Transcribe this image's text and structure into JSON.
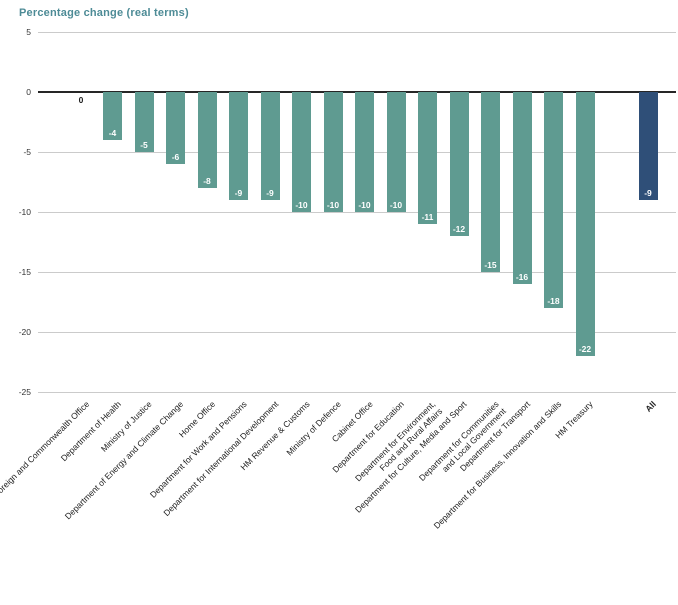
{
  "title": "Percentage change (real terms)",
  "colors": {
    "bar": "#5f9b91",
    "highlight_bar": "#2f4f78",
    "title_text": "#4d8b96",
    "grid": "#cbcbcb",
    "zero_line": "#262626",
    "bar_value_text": "#ffffff",
    "zero_bar_value_text": "#1a1a1a",
    "axis_text": "#333333",
    "category_text": "#222222",
    "background": "#ffffff"
  },
  "chart_data": {
    "type": "bar",
    "title": "Percentage change (real terms)",
    "categories": [
      "Foreign and Commonwealth Office",
      "Department of Health",
      "Ministry of Justice",
      "Department of Energy and Climate Change",
      "Home Office",
      "Department for Work and Pensions",
      "Department for International Development",
      "HM Revenue & Customs",
      "Ministry of Defence",
      "Cabinet Office",
      "Department for Education",
      "Department for Environment,\nFood and Rural Affairs",
      "Department for Culture, Media and Sport",
      "Department for Communities\nand Local Government",
      "Department for Transport",
      "Department for Business, Innovation and Skills",
      "HM Treasury",
      "All"
    ],
    "values": [
      0,
      -4,
      -5,
      -6,
      -8,
      -9,
      -9,
      -10,
      -10,
      -10,
      -10,
      -11,
      -12,
      -15,
      -16,
      -18,
      -22,
      -9
    ],
    "data_labels": [
      "0",
      "-4",
      "-5",
      "-6",
      "-8",
      "-9",
      "-9",
      "-10",
      "-10",
      "-10",
      "-10",
      "-11",
      "-12",
      "-15",
      "-16",
      "-18",
      "-22",
      "-9"
    ],
    "xlabel": "",
    "ylabel": "",
    "ylim": [
      -25,
      5
    ],
    "yticks": [
      5,
      0,
      -5,
      -10,
      -15,
      -20,
      -25
    ],
    "grid": true,
    "legend": "none",
    "highlight_last": true,
    "gap_before_last": true,
    "bold_last_category": true
  }
}
